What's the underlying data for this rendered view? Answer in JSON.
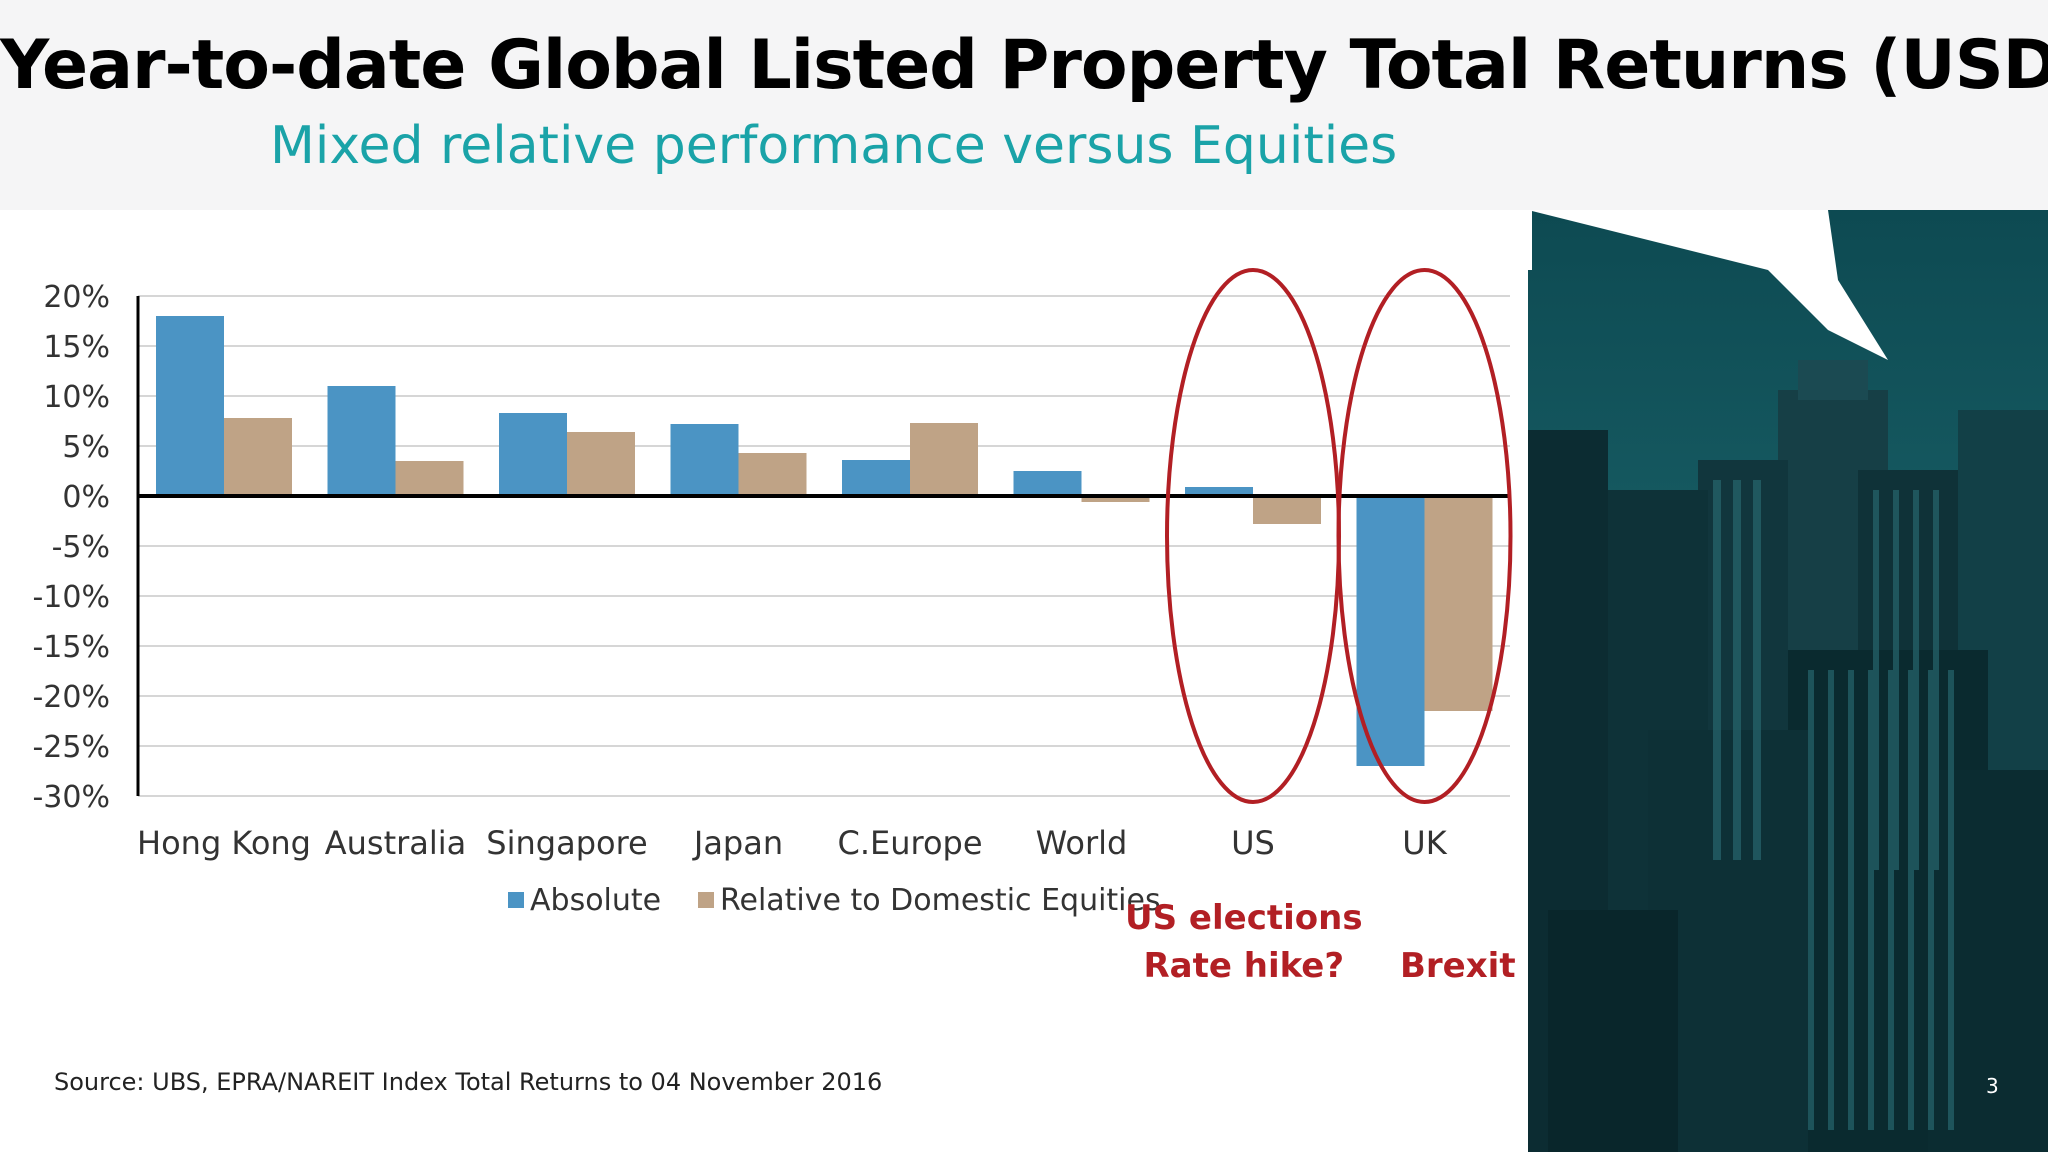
{
  "header": {
    "title": "Year-to-date Global Listed Property Total Returns (USD)",
    "subtitle": "Mixed relative performance versus Equities"
  },
  "chart_data": {
    "type": "bar",
    "categories": [
      "Hong Kong",
      "Australia",
      "Singapore",
      "Japan",
      "C.Europe",
      "World",
      "US",
      "UK"
    ],
    "series": [
      {
        "name": "Absolute",
        "color": "#4b94c4",
        "values": [
          18,
          11,
          8.3,
          7.2,
          3.6,
          2.5,
          0.9,
          -27
        ]
      },
      {
        "name": "Relative to Domestic Equities",
        "color": "#bfa386",
        "values": [
          7.8,
          3.5,
          6.4,
          4.3,
          7.3,
          -0.6,
          -2.8,
          -21.5
        ]
      }
    ],
    "ylim": [
      -30,
      20
    ],
    "yticks": [
      "20%",
      "15%",
      "10%",
      "5%",
      "0%",
      "-5%",
      "-10%",
      "-15%",
      "-20%",
      "-25%",
      "-30%"
    ],
    "grid": true,
    "legend": "bottom",
    "highlighted_categories": [
      "US",
      "UK"
    ],
    "annotation_color": "#b21f24"
  },
  "annotations": {
    "us_line1": "US elections",
    "us_line2": "Rate hike?",
    "uk": "Brexit"
  },
  "footer": {
    "source": "Source:  UBS, EPRA/NAREIT Index Total Returns to 04 November 2016",
    "page_number": "3"
  }
}
